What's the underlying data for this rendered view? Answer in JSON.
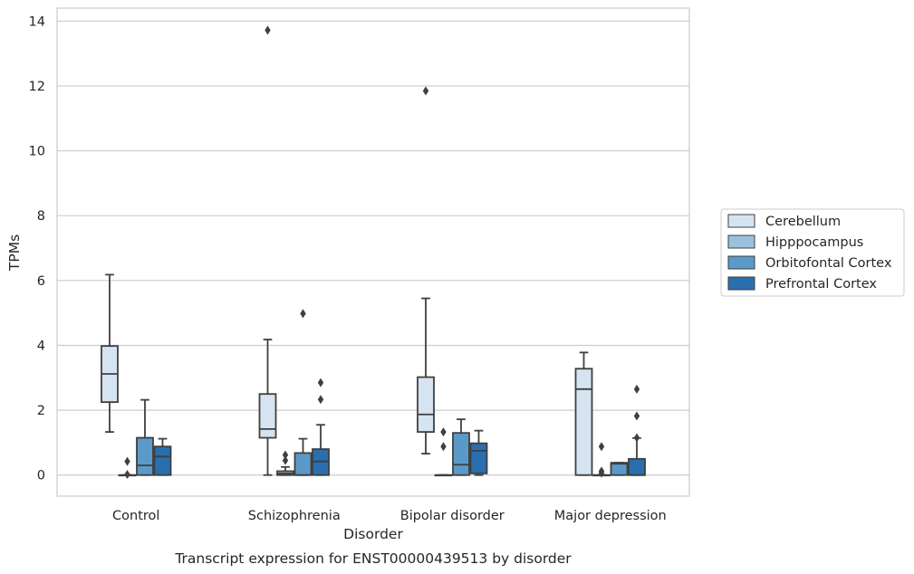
{
  "chart_data": {
    "type": "box",
    "title": "",
    "caption": "Transcript expression for ENST00000439513 by disorder",
    "xlabel": "Disorder",
    "ylabel": "TPMs",
    "ylim": [
      -0.65,
      14.4
    ],
    "yticks": [
      0,
      2,
      4,
      6,
      8,
      10,
      12,
      14
    ],
    "grid": "horizontal",
    "legend_position": "right",
    "categories": [
      "Control",
      "Schizophrenia",
      "Bipolar disorder",
      "Major depression"
    ],
    "series": [
      {
        "name": "Cerebellum",
        "color": "#d6e4f1",
        "boxes": [
          {
            "whislo": 1.33,
            "q1": 2.25,
            "med": 3.12,
            "q3": 3.98,
            "whishi": 6.18,
            "fliers": []
          },
          {
            "whislo": 0.0,
            "q1": 1.15,
            "med": 1.42,
            "q3": 2.5,
            "whishi": 4.18,
            "fliers": [
              13.72
            ]
          },
          {
            "whislo": 0.66,
            "q1": 1.33,
            "med": 1.87,
            "q3": 3.02,
            "whishi": 5.45,
            "fliers": [
              11.85
            ]
          },
          {
            "whislo": 0.0,
            "q1": 0.0,
            "med": 2.65,
            "q3": 3.28,
            "whishi": 3.78,
            "fliers": []
          }
        ]
      },
      {
        "name": "Hipppocampus",
        "color": "#9ac1dc",
        "boxes": [
          {
            "whislo": 0.0,
            "q1": 0.0,
            "med": 0.0,
            "q3": 0.0,
            "whishi": 0.0,
            "fliers": [
              0.42,
              0.02
            ]
          },
          {
            "whislo": 0.0,
            "q1": 0.0,
            "med": 0.05,
            "q3": 0.12,
            "whishi": 0.25,
            "fliers": [
              0.45,
              0.62
            ]
          },
          {
            "whislo": 0.0,
            "q1": 0.0,
            "med": 0.0,
            "q3": 0.0,
            "whishi": 0.0,
            "fliers": [
              0.88,
              1.33
            ]
          },
          {
            "whislo": 0.0,
            "q1": 0.0,
            "med": 0.0,
            "q3": 0.0,
            "whishi": 0.0,
            "fliers": [
              0.06,
              0.12,
              0.88
            ]
          }
        ]
      },
      {
        "name": "Orbitofontal Cortex",
        "color": "#5b9ac8",
        "boxes": [
          {
            "whislo": 0.0,
            "q1": 0.0,
            "med": 0.3,
            "q3": 1.15,
            "whishi": 2.32,
            "fliers": []
          },
          {
            "whislo": 0.0,
            "q1": 0.0,
            "med": 0.0,
            "q3": 0.68,
            "whishi": 1.12,
            "fliers": [
              4.98
            ]
          },
          {
            "whislo": 0.0,
            "q1": 0.0,
            "med": 0.32,
            "q3": 1.3,
            "whishi": 1.72,
            "fliers": []
          },
          {
            "whislo": 0.0,
            "q1": 0.0,
            "med": 0.35,
            "q3": 0.38,
            "whishi": 0.38,
            "fliers": []
          }
        ]
      },
      {
        "name": "Prefrontal Cortex",
        "color": "#2a6fad",
        "boxes": [
          {
            "whislo": 0.0,
            "q1": 0.0,
            "med": 0.57,
            "q3": 0.88,
            "whishi": 1.12,
            "fliers": []
          },
          {
            "whislo": 0.0,
            "q1": 0.0,
            "med": 0.42,
            "q3": 0.8,
            "whishi": 1.55,
            "fliers": [
              2.33,
              2.85
            ]
          },
          {
            "whislo": 0.0,
            "q1": 0.05,
            "med": 0.75,
            "q3": 0.98,
            "whishi": 1.37,
            "fliers": []
          },
          {
            "whislo": 0.0,
            "q1": 0.0,
            "med": 0.0,
            "q3": 0.5,
            "whishi": 1.14,
            "fliers": [
              1.15,
              1.82,
              2.65
            ]
          }
        ]
      }
    ]
  }
}
